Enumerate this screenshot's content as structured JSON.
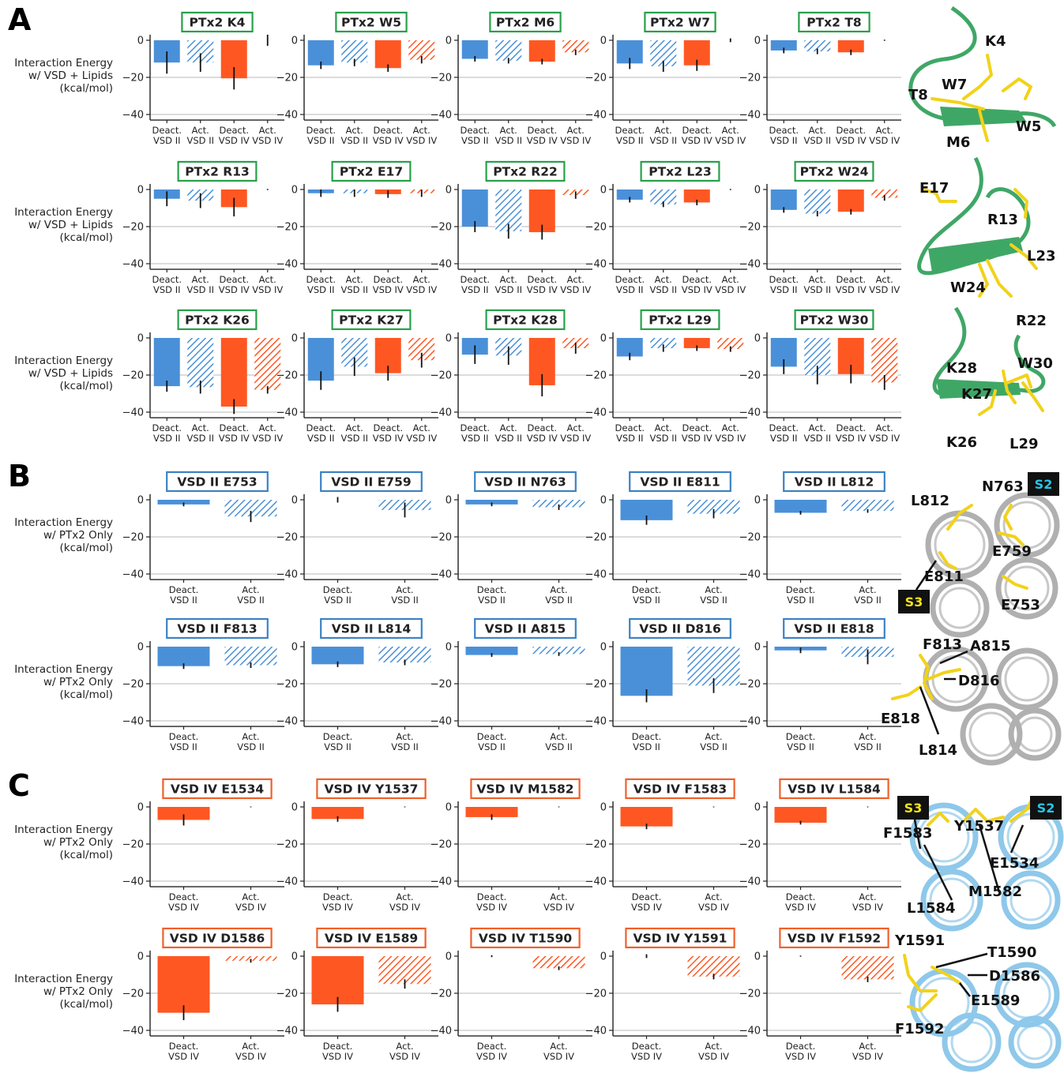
{
  "panels": [
    {
      "letter": "A"
    },
    {
      "letter": "B"
    },
    {
      "letter": "C"
    }
  ],
  "colors": {
    "vsd2": "#4a90d9",
    "vsd4": "#ff5722",
    "ptx_frame": "#27a04a",
    "vsd2_frame": "#3b82c4",
    "vsd4_frame": "#f0602a",
    "ptx_struct": "#3fa766",
    "vsd2_struct": "#b0b0b0",
    "vsd4_struct": "#8ec8ea",
    "sidechain": "#f2d21a",
    "grid": "#c8c8c8"
  },
  "ylabels": {
    "lipids": [
      "Interaction Energy",
      "w/ VSD + Lipids",
      "(kcal/mol)"
    ],
    "ptx": [
      "Interaction Energy",
      "w/ PTx2 Only",
      "(kcal/mol)"
    ]
  },
  "xticks": {
    "four": [
      [
        "Deact.",
        "VSD II"
      ],
      [
        "Act.",
        "VSD II"
      ],
      [
        "Deact.",
        "VSD IV"
      ],
      [
        "Act.",
        "VSD IV"
      ]
    ],
    "vsd2": [
      [
        "Deact.",
        "VSD II"
      ],
      [
        "Act.",
        "VSD II"
      ]
    ],
    "vsd4": [
      [
        "Deact.",
        "VSD IV"
      ],
      [
        "Act.",
        "VSD IV"
      ]
    ]
  },
  "chart_data": [
    {
      "type": "bar",
      "group": "A",
      "frame": "ptx",
      "title": "PTx2 K4",
      "categories": [
        "Deact. VSD II",
        "Act. VSD II",
        "Deact. VSD IV",
        "Act. VSD IV"
      ],
      "values": [
        -12,
        -12,
        -20.5,
        0
      ],
      "errors": [
        6,
        5,
        6,
        3
      ],
      "ylim": [
        -43,
        3
      ],
      "yticks": [
        0,
        -20,
        -40
      ]
    },
    {
      "type": "bar",
      "group": "A",
      "frame": "ptx",
      "title": "PTx2 W5",
      "categories": [
        "Deact. VSD II",
        "Act. VSD II",
        "Deact. VSD IV",
        "Act. VSD IV"
      ],
      "values": [
        -13.5,
        -12,
        -15,
        -10.5
      ],
      "errors": [
        2,
        2,
        2,
        2
      ],
      "ylim": [
        -43,
        3
      ],
      "yticks": [
        0,
        -20,
        -40
      ]
    },
    {
      "type": "bar",
      "group": "A",
      "frame": "ptx",
      "title": "PTx2 M6",
      "categories": [
        "Deact. VSD II",
        "Act. VSD II",
        "Deact. VSD IV",
        "Act. VSD IV"
      ],
      "values": [
        -10,
        -11,
        -11.5,
        -6.5
      ],
      "errors": [
        1.5,
        1.5,
        1.5,
        1.5
      ],
      "ylim": [
        -43,
        3
      ],
      "yticks": [
        0,
        -20,
        -40
      ]
    },
    {
      "type": "bar",
      "group": "A",
      "frame": "ptx",
      "title": "PTx2 W7",
      "categories": [
        "Deact. VSD II",
        "Act. VSD II",
        "Deact. VSD IV",
        "Act. VSD IV"
      ],
      "values": [
        -12.5,
        -14,
        -13.5,
        0
      ],
      "errors": [
        3,
        3,
        3,
        1
      ],
      "ylim": [
        -43,
        3
      ],
      "yticks": [
        0,
        -20,
        -40
      ]
    },
    {
      "type": "bar",
      "group": "A",
      "frame": "ptx",
      "title": "PTx2 T8",
      "categories": [
        "Deact. VSD II",
        "Act. VSD II",
        "Deact. VSD IV",
        "Act. VSD IV"
      ],
      "values": [
        -5.5,
        -6,
        -6.5,
        0
      ],
      "errors": [
        1.5,
        1.5,
        1.5,
        0.3
      ],
      "ylim": [
        -43,
        3
      ],
      "yticks": [
        0,
        -20,
        -40
      ]
    },
    {
      "type": "bar",
      "group": "A",
      "frame": "ptx",
      "title": "PTx2 R13",
      "categories": [
        "Deact. VSD II",
        "Act. VSD II",
        "Deact. VSD IV",
        "Act. VSD IV"
      ],
      "values": [
        -5,
        -6,
        -9.5,
        0
      ],
      "errors": [
        4,
        4,
        5,
        0.3
      ],
      "ylim": [
        -43,
        3
      ],
      "yticks": [
        0,
        -20,
        -40
      ]
    },
    {
      "type": "bar",
      "group": "A",
      "frame": "ptx",
      "title": "PTx2 E17",
      "categories": [
        "Deact. VSD II",
        "Act. VSD II",
        "Deact. VSD IV",
        "Act. VSD IV"
      ],
      "values": [
        -2,
        -2,
        -2.5,
        -2
      ],
      "errors": [
        2,
        2,
        2,
        2
      ],
      "ylim": [
        -43,
        3
      ],
      "yticks": [
        0,
        -20,
        -40
      ]
    },
    {
      "type": "bar",
      "group": "A",
      "frame": "ptx",
      "title": "PTx2 R22",
      "categories": [
        "Deact. VSD II",
        "Act. VSD II",
        "Deact. VSD IV",
        "Act. VSD IV"
      ],
      "values": [
        -20,
        -22.5,
        -23,
        -3
      ],
      "errors": [
        3,
        4,
        4,
        2
      ],
      "ylim": [
        -43,
        3
      ],
      "yticks": [
        0,
        -20,
        -40
      ]
    },
    {
      "type": "bar",
      "group": "A",
      "frame": "ptx",
      "title": "PTx2 L23",
      "categories": [
        "Deact. VSD II",
        "Act. VSD II",
        "Deact. VSD IV",
        "Act. VSD IV"
      ],
      "values": [
        -5.5,
        -8,
        -7,
        0
      ],
      "errors": [
        1.5,
        1.5,
        1.5,
        0.3
      ],
      "ylim": [
        -43,
        3
      ],
      "yticks": [
        0,
        -20,
        -40
      ]
    },
    {
      "type": "bar",
      "group": "A",
      "frame": "ptx",
      "title": "PTx2 W24",
      "categories": [
        "Deact. VSD II",
        "Act. VSD II",
        "Deact. VSD IV",
        "Act. VSD IV"
      ],
      "values": [
        -11,
        -13,
        -12,
        -4.5
      ],
      "errors": [
        1.5,
        1.5,
        1.5,
        1.5
      ],
      "ylim": [
        -43,
        3
      ],
      "yticks": [
        0,
        -20,
        -40
      ]
    },
    {
      "type": "bar",
      "group": "A",
      "frame": "ptx",
      "title": "PTx2 K26",
      "categories": [
        "Deact. VSD II",
        "Act. VSD II",
        "Deact. VSD IV",
        "Act. VSD IV"
      ],
      "values": [
        -26,
        -26.5,
        -37,
        -28
      ],
      "errors": [
        3,
        3.5,
        4,
        2
      ],
      "ylim": [
        -43,
        3
      ],
      "yticks": [
        0,
        -20,
        -40
      ]
    },
    {
      "type": "bar",
      "group": "A",
      "frame": "ptx",
      "title": "PTx2 K27",
      "categories": [
        "Deact. VSD II",
        "Act. VSD II",
        "Deact. VSD IV",
        "Act. VSD IV"
      ],
      "values": [
        -23,
        -15.5,
        -19,
        -12
      ],
      "errors": [
        5,
        5,
        4,
        4
      ],
      "ylim": [
        -43,
        3
      ],
      "yticks": [
        0,
        -20,
        -40
      ]
    },
    {
      "type": "bar",
      "group": "A",
      "frame": "ptx",
      "title": "PTx2 K28",
      "categories": [
        "Deact. VSD II",
        "Act. VSD II",
        "Deact. VSD IV",
        "Act. VSD IV"
      ],
      "values": [
        -9,
        -9.5,
        -25.5,
        -5.5
      ],
      "errors": [
        5,
        5,
        6,
        3
      ],
      "ylim": [
        -43,
        3
      ],
      "yticks": [
        0,
        -20,
        -40
      ]
    },
    {
      "type": "bar",
      "group": "A",
      "frame": "ptx",
      "title": "PTx2 L29",
      "categories": [
        "Deact. VSD II",
        "Act. VSD II",
        "Deact. VSD IV",
        "Act. VSD IV"
      ],
      "values": [
        -10,
        -5.5,
        -5.5,
        -6
      ],
      "errors": [
        2,
        2,
        1.5,
        1.5
      ],
      "ylim": [
        -43,
        3
      ],
      "yticks": [
        0,
        -20,
        -40
      ]
    },
    {
      "type": "bar",
      "group": "A",
      "frame": "ptx",
      "title": "PTx2 W30",
      "categories": [
        "Deact. VSD II",
        "Act. VSD II",
        "Deact. VSD IV",
        "Act. VSD IV"
      ],
      "values": [
        -15.5,
        -20,
        -19.5,
        -24
      ],
      "errors": [
        4,
        5,
        5,
        4
      ],
      "ylim": [
        -43,
        3
      ],
      "yticks": [
        0,
        -20,
        -40
      ]
    },
    {
      "type": "bar",
      "group": "B",
      "frame": "vsd2",
      "title": "VSD II E753",
      "categories": [
        "Deact. VSD II",
        "Act. VSD II"
      ],
      "values": [
        -2.5,
        -9
      ],
      "errors": [
        1,
        3
      ],
      "ylim": [
        -43,
        3
      ],
      "yticks": [
        0,
        -20,
        -40
      ]
    },
    {
      "type": "bar",
      "group": "B",
      "frame": "vsd2",
      "title": "VSD II E759",
      "categories": [
        "Deact. VSD II",
        "Act. VSD II"
      ],
      "values": [
        0,
        -5.5
      ],
      "errors": [
        1.5,
        4
      ],
      "ylim": [
        -43,
        3
      ],
      "yticks": [
        0,
        -20,
        -40
      ]
    },
    {
      "type": "bar",
      "group": "B",
      "frame": "vsd2",
      "title": "VSD II N763",
      "categories": [
        "Deact. VSD II",
        "Act. VSD II"
      ],
      "values": [
        -2.5,
        -4
      ],
      "errors": [
        1,
        1.5
      ],
      "ylim": [
        -43,
        3
      ],
      "yticks": [
        0,
        -20,
        -40
      ]
    },
    {
      "type": "bar",
      "group": "B",
      "frame": "vsd2",
      "title": "VSD II E811",
      "categories": [
        "Deact. VSD II",
        "Act. VSD II"
      ],
      "values": [
        -11,
        -7.5
      ],
      "errors": [
        2.5,
        2.5
      ],
      "ylim": [
        -43,
        3
      ],
      "yticks": [
        0,
        -20,
        -40
      ]
    },
    {
      "type": "bar",
      "group": "B",
      "frame": "vsd2",
      "title": "VSD II L812",
      "categories": [
        "Deact. VSD II",
        "Act. VSD II"
      ],
      "values": [
        -7,
        -6
      ],
      "errors": [
        1,
        1
      ],
      "ylim": [
        -43,
        3
      ],
      "yticks": [
        0,
        -20,
        -40
      ]
    },
    {
      "type": "bar",
      "group": "B",
      "frame": "vsd2",
      "title": "VSD II F813",
      "categories": [
        "Deact. VSD II",
        "Act. VSD II"
      ],
      "values": [
        -10.5,
        -10
      ],
      "errors": [
        1.5,
        1.5
      ],
      "ylim": [
        -43,
        3
      ],
      "yticks": [
        0,
        -20,
        -40
      ]
    },
    {
      "type": "bar",
      "group": "B",
      "frame": "vsd2",
      "title": "VSD II L814",
      "categories": [
        "Deact. VSD II",
        "Act. VSD II"
      ],
      "values": [
        -9.5,
        -8.5
      ],
      "errors": [
        1.5,
        1.5
      ],
      "ylim": [
        -43,
        3
      ],
      "yticks": [
        0,
        -20,
        -40
      ]
    },
    {
      "type": "bar",
      "group": "B",
      "frame": "vsd2",
      "title": "VSD II A815",
      "categories": [
        "Deact. VSD II",
        "Act. VSD II"
      ],
      "values": [
        -4.5,
        -4
      ],
      "errors": [
        1,
        1
      ],
      "ylim": [
        -43,
        3
      ],
      "yticks": [
        0,
        -20,
        -40
      ]
    },
    {
      "type": "bar",
      "group": "B",
      "frame": "vsd2",
      "title": "VSD II D816",
      "categories": [
        "Deact. VSD II",
        "Act. VSD II"
      ],
      "values": [
        -26.5,
        -21
      ],
      "errors": [
        3.5,
        4
      ],
      "ylim": [
        -43,
        3
      ],
      "yticks": [
        0,
        -20,
        -40
      ]
    },
    {
      "type": "bar",
      "group": "B",
      "frame": "vsd2",
      "title": "VSD II E818",
      "categories": [
        "Deact. VSD II",
        "Act. VSD II"
      ],
      "values": [
        -2,
        -5.5
      ],
      "errors": [
        1.5,
        4
      ],
      "ylim": [
        -43,
        3
      ],
      "yticks": [
        0,
        -20,
        -40
      ]
    },
    {
      "type": "bar",
      "group": "C",
      "frame": "vsd4",
      "title": "VSD IV E1534",
      "categories": [
        "Deact. VSD IV",
        "Act. VSD IV"
      ],
      "values": [
        -7,
        0
      ],
      "errors": [
        3,
        0.2
      ],
      "ylim": [
        -43,
        3
      ],
      "yticks": [
        0,
        -20,
        -40
      ]
    },
    {
      "type": "bar",
      "group": "C",
      "frame": "vsd4",
      "title": "VSD IV Y1537",
      "categories": [
        "Deact. VSD IV",
        "Act. VSD IV"
      ],
      "values": [
        -6.5,
        0
      ],
      "errors": [
        1.5,
        0.2
      ],
      "ylim": [
        -43,
        3
      ],
      "yticks": [
        0,
        -20,
        -40
      ]
    },
    {
      "type": "bar",
      "group": "C",
      "frame": "vsd4",
      "title": "VSD IV M1582",
      "categories": [
        "Deact. VSD IV",
        "Act. VSD IV"
      ],
      "values": [
        -5.5,
        0
      ],
      "errors": [
        1.5,
        0.2
      ],
      "ylim": [
        -43,
        3
      ],
      "yticks": [
        0,
        -20,
        -40
      ]
    },
    {
      "type": "bar",
      "group": "C",
      "frame": "vsd4",
      "title": "VSD IV F1583",
      "categories": [
        "Deact. VSD IV",
        "Act. VSD IV"
      ],
      "values": [
        -10.5,
        0
      ],
      "errors": [
        1.5,
        0.2
      ],
      "ylim": [
        -43,
        3
      ],
      "yticks": [
        0,
        -20,
        -40
      ]
    },
    {
      "type": "bar",
      "group": "C",
      "frame": "vsd4",
      "title": "VSD IV L1584",
      "categories": [
        "Deact. VSD IV",
        "Act. VSD IV"
      ],
      "values": [
        -8.5,
        0
      ],
      "errors": [
        1,
        0.2
      ],
      "ylim": [
        -43,
        3
      ],
      "yticks": [
        0,
        -20,
        -40
      ]
    },
    {
      "type": "bar",
      "group": "C",
      "frame": "vsd4",
      "title": "VSD IV D1586",
      "categories": [
        "Deact. VSD IV",
        "Act. VSD IV"
      ],
      "values": [
        -30.5,
        -2.5
      ],
      "errors": [
        4,
        1
      ],
      "ylim": [
        -43,
        3
      ],
      "yticks": [
        0,
        -20,
        -40
      ]
    },
    {
      "type": "bar",
      "group": "C",
      "frame": "vsd4",
      "title": "VSD IV E1589",
      "categories": [
        "Deact. VSD IV",
        "Act. VSD IV"
      ],
      "values": [
        -26,
        -15
      ],
      "errors": [
        4,
        2.5
      ],
      "ylim": [
        -43,
        3
      ],
      "yticks": [
        0,
        -20,
        -40
      ]
    },
    {
      "type": "bar",
      "group": "C",
      "frame": "vsd4",
      "title": "VSD IV T1590",
      "categories": [
        "Deact. VSD IV",
        "Act. VSD IV"
      ],
      "values": [
        0,
        -6.5
      ],
      "errors": [
        0.5,
        1
      ],
      "ylim": [
        -43,
        3
      ],
      "yticks": [
        0,
        -20,
        -40
      ]
    },
    {
      "type": "bar",
      "group": "C",
      "frame": "vsd4",
      "title": "VSD IV Y1591",
      "categories": [
        "Deact. VSD IV",
        "Act. VSD IV"
      ],
      "values": [
        0,
        -11
      ],
      "errors": [
        1,
        1.5
      ],
      "ylim": [
        -43,
        3
      ],
      "yticks": [
        0,
        -20,
        -40
      ]
    },
    {
      "type": "bar",
      "group": "C",
      "frame": "vsd4",
      "title": "VSD IV F1592",
      "categories": [
        "Deact. VSD IV",
        "Act. VSD IV"
      ],
      "values": [
        0,
        -12.5
      ],
      "errors": [
        0.3,
        1.5
      ],
      "ylim": [
        -43,
        3
      ],
      "yticks": [
        0,
        -20,
        -40
      ]
    }
  ],
  "structures": [
    {
      "name": "ptx2-structure-1",
      "kind": "ptx",
      "labels": [
        "K4",
        "W7",
        "T8",
        "W5",
        "M6"
      ]
    },
    {
      "name": "ptx2-structure-2",
      "kind": "ptx",
      "labels": [
        "E17",
        "R13",
        "L23",
        "W24",
        "R22"
      ]
    },
    {
      "name": "ptx2-structure-3",
      "kind": "ptx",
      "labels": [
        "W30",
        "K28",
        "K27",
        "K26",
        "L29"
      ]
    },
    {
      "name": "vsd2-structure-1",
      "kind": "vsd2",
      "labels": [
        "N763",
        "L812",
        "E759",
        "E811",
        "E753"
      ],
      "boxes": [
        "S2",
        "S3"
      ]
    },
    {
      "name": "vsd2-structure-2",
      "kind": "vsd2",
      "labels": [
        "F813",
        "A815",
        "D816",
        "E818",
        "L814"
      ]
    },
    {
      "name": "vsd4-structure-1",
      "kind": "vsd4",
      "labels": [
        "F1583",
        "Y1537",
        "E1534",
        "M1582",
        "L1584"
      ],
      "boxes": [
        "S3",
        "S2"
      ]
    },
    {
      "name": "vsd4-structure-2",
      "kind": "vsd4",
      "labels": [
        "Y1591",
        "T1590",
        "D1586",
        "E1589",
        "F1592"
      ]
    }
  ]
}
